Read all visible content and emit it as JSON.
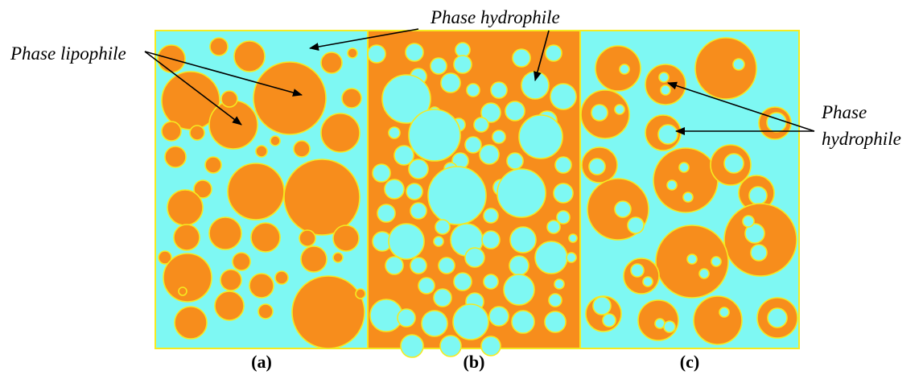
{
  "colors": {
    "hydrophile": "#7ef8f3",
    "lipophile": "#f78d1c",
    "outline": "#f5ea20",
    "ink": "#000000"
  },
  "annotations": {
    "top_hydrophile": "Phase hydrophile",
    "lipophile": "Phase lipophile",
    "right_hydrophile_line1": "Phase",
    "right_hydrophile_line2": "hydrophile"
  },
  "panels": [
    {
      "label": "(a)",
      "background": "hydrophile",
      "droplets": "lipophile"
    },
    {
      "label": "(b)",
      "background": "lipophile",
      "droplets": "hydrophile"
    },
    {
      "label": "(c)",
      "background": "hydrophile",
      "droplets": "lipophile containing hydrophile"
    }
  ]
}
